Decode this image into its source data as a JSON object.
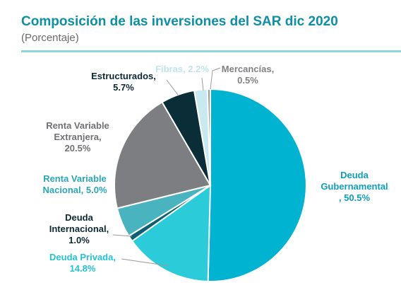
{
  "header": {
    "title": "Composición de las inversiones del SAR dic 2020",
    "subtitle": "(Porcentaje)"
  },
  "chart_data": {
    "type": "pie",
    "title": "Composición de las inversiones del SAR dic 2020",
    "subtitle": "(Porcentaje)",
    "unit": "%",
    "slices": [
      {
        "name": "Deuda Gubernamental",
        "value": 50.5,
        "color": "#00b3d1",
        "label_lines": [
          "Deuda",
          "Gubernamental",
          ", 50.5%"
        ],
        "label_color": "#0e9fbf"
      },
      {
        "name": "Deuda Privada",
        "value": 14.8,
        "color": "#2ccbd9",
        "label_lines": [
          "Deuda Privada,",
          "14.8%"
        ],
        "label_color": "#23c2d6"
      },
      {
        "name": "Deuda Internacional",
        "value": 1.0,
        "color": "#0d5f72",
        "label_lines": [
          "Deuda",
          "Internacional,",
          "1.0%"
        ],
        "label_color": "#0c2a35"
      },
      {
        "name": "Renta Variable Nacional",
        "value": 5.0,
        "color": "#49b4bf",
        "label_lines": [
          "Renta Variable",
          "Nacional, 5.0%"
        ],
        "label_color": "#2aa6b9"
      },
      {
        "name": "Renta Variable Extranjera",
        "value": 20.5,
        "color": "#7d7e82",
        "label_lines": [
          "Renta Variable",
          "Extranjera,",
          "20.5%"
        ],
        "label_color": "#707175"
      },
      {
        "name": "Estructurados",
        "value": 5.7,
        "color": "#0b2d38",
        "label_lines": [
          "Estructurados,",
          "5.7%"
        ],
        "label_color": "#0c2a35"
      },
      {
        "name": "Fibras",
        "value": 2.2,
        "color": "#c8e9ef",
        "label_lines": [
          "Fibras, 2.2%"
        ],
        "label_color": "#bfe4ec"
      },
      {
        "name": "Mercancías",
        "value": 0.5,
        "color": "#9a9b9e",
        "label_lines": [
          "Mercancías,",
          "0.5%"
        ],
        "label_color": "#808184"
      }
    ]
  }
}
